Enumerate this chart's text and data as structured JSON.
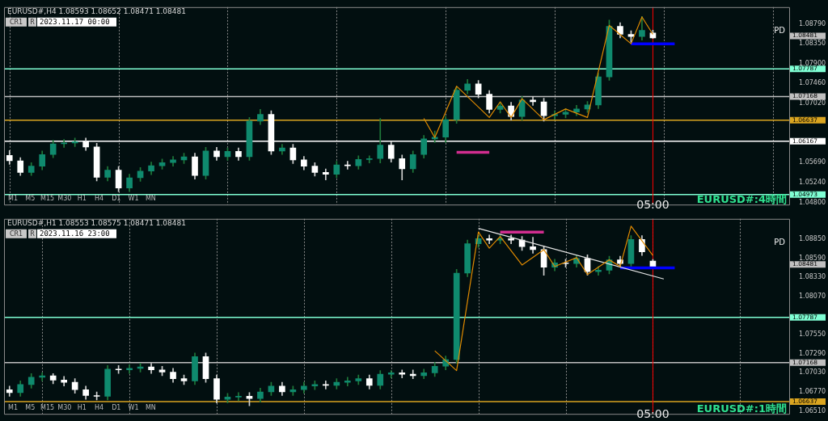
{
  "chart_data": [
    {
      "type": "candlestick",
      "title": "EURUSD#,H4 1.08593 1.08652 1.08471 1.08481",
      "grid": "x",
      "categories": [
        null,
        null,
        null,
        null,
        null,
        null,
        null,
        null,
        null,
        null,
        null,
        null,
        null,
        null,
        null,
        null,
        null,
        null,
        null,
        null,
        null,
        null,
        null,
        null,
        null,
        null,
        null,
        null,
        null,
        null,
        null,
        null,
        null,
        null,
        null,
        null,
        null,
        null,
        null,
        null,
        null,
        null,
        null,
        null,
        null,
        null,
        null,
        null,
        null,
        null,
        null,
        null,
        null,
        null,
        null,
        null,
        null,
        null,
        null,
        "05:00",
        null,
        null,
        null,
        null,
        null,
        null,
        null,
        null,
        null,
        null,
        null,
        null
      ],
      "ohlc": [
        [
          1.0585,
          1.0596,
          1.0565,
          1.0573
        ],
        [
          1.0573,
          1.058,
          1.054,
          1.0547
        ],
        [
          1.0547,
          1.0569,
          1.054,
          1.0561
        ],
        [
          1.0561,
          1.0595,
          1.0553,
          1.0587
        ],
        [
          1.0587,
          1.0619,
          1.058,
          1.0611
        ],
        [
          1.0611,
          1.0621,
          1.0603,
          1.0613
        ],
        [
          1.0613,
          1.0624,
          1.0605,
          1.0616
        ],
        [
          1.0616,
          1.0624,
          1.0596,
          1.0604
        ],
        [
          1.0604,
          1.0612,
          1.0528,
          1.0536
        ],
        [
          1.0536,
          1.056,
          1.0528,
          1.0552
        ],
        [
          1.0552,
          1.056,
          1.0504,
          1.0512
        ],
        [
          1.0512,
          1.0543,
          1.0504,
          1.0535
        ],
        [
          1.0535,
          1.0558,
          1.0527,
          1.055
        ],
        [
          1.055,
          1.057,
          1.0542,
          1.0562
        ],
        [
          1.0562,
          1.0577,
          1.0554,
          1.0569
        ],
        [
          1.0569,
          1.0583,
          1.0561,
          1.0575
        ],
        [
          1.0575,
          1.059,
          1.0567,
          1.0582
        ],
        [
          1.0582,
          1.059,
          1.0532,
          1.054
        ],
        [
          1.054,
          1.0603,
          1.0532,
          1.0595
        ],
        [
          1.0595,
          1.0603,
          1.0574,
          1.0582
        ],
        [
          1.0582,
          1.0602,
          1.0574,
          1.0594
        ],
        [
          1.0594,
          1.0602,
          1.0574,
          1.0582
        ],
        [
          1.0582,
          1.067,
          1.0574,
          1.0662
        ],
        [
          1.0662,
          1.0688,
          1.0654,
          1.0677
        ],
        [
          1.0677,
          1.0685,
          1.0587,
          1.0595
        ],
        [
          1.0595,
          1.061,
          1.0587,
          1.0602
        ],
        [
          1.0602,
          1.061,
          1.0567,
          1.0575
        ],
        [
          1.0575,
          1.0583,
          1.0553,
          1.0561
        ],
        [
          1.0561,
          1.0569,
          1.0539,
          1.0547
        ],
        [
          1.0547,
          1.0555,
          1.053,
          1.0543
        ],
        [
          1.0543,
          1.0572,
          1.0535,
          1.0564
        ],
        [
          1.0564,
          1.0572,
          1.0554,
          1.0562
        ],
        [
          1.0562,
          1.0584,
          1.0554,
          1.0576
        ],
        [
          1.0576,
          1.0584,
          1.0568,
          1.0578
        ],
        [
          1.0578,
          1.0668,
          1.0568,
          1.0608
        ],
        [
          1.0608,
          1.0616,
          1.057,
          1.0578
        ],
        [
          1.0578,
          1.0586,
          1.053,
          1.0555
        ],
        [
          1.0555,
          1.0595,
          1.0547,
          1.0587
        ],
        [
          1.0587,
          1.063,
          1.0579,
          1.0622
        ],
        [
          1.0622,
          1.064,
          1.0614,
          1.0626
        ],
        [
          1.0626,
          1.0673,
          1.0614,
          1.0665
        ],
        [
          1.0665,
          1.0739,
          1.0657,
          1.0731
        ],
        [
          1.0731,
          1.0755,
          1.0723,
          1.0745
        ],
        [
          1.0745,
          1.0753,
          1.0714,
          1.0722
        ],
        [
          1.0722,
          1.073,
          1.068,
          1.0688
        ],
        [
          1.0688,
          1.0704,
          1.068,
          1.0696
        ],
        [
          1.0696,
          1.0704,
          1.0664,
          1.0672
        ],
        [
          1.0672,
          1.0717,
          1.0664,
          1.0709
        ],
        [
          1.0709,
          1.0717,
          1.0697,
          1.0705
        ],
        [
          1.0705,
          1.0713,
          1.0662,
          1.0674
        ],
        [
          1.0674,
          1.0685,
          1.0666,
          1.0677
        ],
        [
          1.0677,
          1.069,
          1.0669,
          1.0682
        ],
        [
          1.0682,
          1.0697,
          1.0674,
          1.0689
        ],
        [
          1.0689,
          1.0706,
          1.0681,
          1.0698
        ],
        [
          1.0698,
          1.0769,
          1.069,
          1.0761
        ],
        [
          1.0761,
          1.0888,
          1.0753,
          1.0874
        ],
        [
          1.0874,
          1.0882,
          1.0848,
          1.0856
        ],
        [
          1.0856,
          1.0864,
          1.0838,
          1.0851
        ],
        [
          1.0851,
          1.0896,
          1.0843,
          1.0865
        ],
        [
          1.08593,
          1.08652,
          1.08471,
          1.08481
        ],
        null,
        null,
        null,
        null,
        null,
        null,
        null,
        null,
        null,
        null,
        null,
        null
      ],
      "series": [
        {
          "type": "line",
          "color": "#e08a00",
          "values": [
            null,
            null,
            null,
            null,
            null,
            null,
            null,
            null,
            null,
            null,
            null,
            null,
            null,
            null,
            null,
            null,
            null,
            null,
            null,
            null,
            null,
            null,
            null,
            null,
            null,
            null,
            null,
            null,
            null,
            null,
            null,
            null,
            null,
            null,
            null,
            null,
            null,
            null,
            1.0668,
            1.0625,
            null,
            1.074,
            null,
            null,
            1.067,
            1.0705,
            1.067,
            1.0712,
            null,
            1.0665,
            null,
            1.0689,
            null,
            1.067,
            null,
            1.0876,
            null,
            1.0835,
            1.0895,
            1.0856,
            null,
            null,
            null,
            null,
            null,
            null,
            null,
            null,
            null,
            null,
            null,
            null
          ]
        },
        {
          "type": "line",
          "color": "#0000ff",
          "values": [
            null,
            null,
            null,
            null,
            null,
            null,
            null,
            null,
            null,
            null,
            null,
            null,
            null,
            null,
            null,
            null,
            null,
            null,
            null,
            null,
            null,
            null,
            null,
            null,
            null,
            null,
            null,
            null,
            null,
            null,
            null,
            null,
            null,
            null,
            null,
            null,
            null,
            null,
            null,
            null,
            null,
            null,
            null,
            null,
            null,
            null,
            null,
            null,
            null,
            null,
            null,
            null,
            null,
            null,
            null,
            null,
            null,
            1.0835,
            null,
            null,
            null,
            1.0835,
            null,
            null,
            null,
            null,
            null,
            null,
            null,
            null,
            null,
            null
          ]
        },
        {
          "type": "line",
          "color": "#d12d8f",
          "values": [
            null,
            null,
            null,
            null,
            null,
            null,
            null,
            null,
            null,
            null,
            null,
            null,
            null,
            null,
            null,
            null,
            null,
            null,
            null,
            null,
            null,
            null,
            null,
            null,
            null,
            null,
            null,
            null,
            null,
            null,
            null,
            null,
            null,
            null,
            null,
            null,
            null,
            null,
            null,
            null,
            null,
            1.0592,
            null,
            null,
            1.0592,
            null,
            null,
            null,
            null,
            null,
            null,
            null,
            null,
            null,
            null,
            null,
            null,
            null,
            null,
            null,
            null,
            null,
            null,
            null,
            null,
            null,
            null,
            null,
            null,
            null,
            null,
            null
          ]
        }
      ],
      "ylim": [
        1.0475,
        1.0917
      ],
      "yticks": [
        {
          "value": 1.048,
          "label": "1.04800"
        },
        {
          "value": 1.0524,
          "label": "1.05240"
        },
        {
          "value": 1.0569,
          "label": "1.05690"
        },
        {
          "value": 1.0702,
          "label": "1.07020"
        },
        {
          "value": 1.0746,
          "label": "1.07460"
        },
        {
          "value": 1.079,
          "label": "1.07900"
        },
        {
          "value": 1.0835,
          "label": "1.08350"
        },
        {
          "value": 1.0879,
          "label": "1.08790"
        }
      ],
      "ref_lines": [
        {
          "axis": "y",
          "value": 1.07787,
          "label": "1.07787",
          "color": "#7fffd4"
        },
        {
          "axis": "y",
          "value": 1.07168,
          "label": "1.07168",
          "color": "#c0c0c0"
        },
        {
          "axis": "y",
          "value": 1.06637,
          "label": "1.06637",
          "color": "#daa520"
        },
        {
          "axis": "y",
          "value": 1.06167,
          "label": "1.06167",
          "color": "#ffffff"
        },
        {
          "axis": "y",
          "value": 1.04973,
          "label": "1.04973",
          "color": "#7fffd4"
        },
        {
          "axis": "x",
          "value": "05:00",
          "color": "#ff0000"
        }
      ],
      "annotations": [
        "CR1",
        "R",
        "2023.11.17 00:00",
        "M1",
        "M5",
        "M15",
        "M30",
        "H1",
        "H4",
        "D1",
        "W1",
        "MN",
        "PD",
        "EURUSD#:4時間",
        "1.08481"
      ]
    },
    {
      "type": "candlestick",
      "title": "EURUSD#,H1 1.08553 1.08575 1.08471 1.08481",
      "grid": "x",
      "categories": [
        null,
        null,
        null,
        null,
        null,
        null,
        null,
        null,
        null,
        null,
        null,
        null,
        null,
        null,
        null,
        null,
        null,
        null,
        null,
        null,
        null,
        null,
        null,
        null,
        null,
        null,
        null,
        null,
        null,
        null,
        null,
        null,
        null,
        null,
        null,
        null,
        null,
        null,
        null,
        null,
        null,
        null,
        null,
        null,
        null,
        null,
        null,
        null,
        null,
        null,
        null,
        null,
        null,
        null,
        null,
        null,
        null,
        null,
        null,
        "05:00",
        null,
        null,
        null,
        null,
        null,
        null,
        null,
        null,
        null,
        null,
        null,
        null
      ],
      "ohlc": [
        [
          1.068,
          1.0685,
          1.0671,
          1.0676
        ],
        [
          1.0676,
          1.0692,
          1.0671,
          1.0687
        ],
        [
          1.0687,
          1.0702,
          1.0682,
          1.0697
        ],
        [
          1.0697,
          1.0703,
          1.0692,
          1.0699
        ],
        [
          1.0699,
          1.0702,
          1.0688,
          1.0693
        ],
        [
          1.0693,
          1.0698,
          1.0685,
          1.069
        ],
        [
          1.069,
          1.0695,
          1.0675,
          1.068
        ],
        [
          1.068,
          1.0685,
          1.0667,
          1.0672
        ],
        [
          1.0672,
          1.0677,
          1.0666,
          1.0671
        ],
        [
          1.0671,
          1.0713,
          1.0666,
          1.0708
        ],
        [
          1.0708,
          1.0713,
          1.0702,
          1.0707
        ],
        [
          1.0707,
          1.0714,
          1.0702,
          1.0709
        ],
        [
          1.0709,
          1.0716,
          1.0704,
          1.0711
        ],
        [
          1.0711,
          1.0716,
          1.0702,
          1.0707
        ],
        [
          1.0707,
          1.0712,
          1.0699,
          1.0704
        ],
        [
          1.0704,
          1.0709,
          1.069,
          1.0695
        ],
        [
          1.0695,
          1.07,
          1.0687,
          1.0692
        ],
        [
          1.0692,
          1.073,
          1.0687,
          1.0725
        ],
        [
          1.0725,
          1.073,
          1.069,
          1.0695
        ],
        [
          1.0695,
          1.07,
          1.0662,
          1.0667
        ],
        [
          1.0667,
          1.0675,
          1.0662,
          1.067
        ],
        [
          1.067,
          1.0676,
          1.0665,
          1.0671
        ],
        [
          1.0671,
          1.0676,
          1.0658,
          1.0668
        ],
        [
          1.0668,
          1.0682,
          1.0663,
          1.0677
        ],
        [
          1.0677,
          1.069,
          1.0672,
          1.0685
        ],
        [
          1.0685,
          1.069,
          1.0672,
          1.0677
        ],
        [
          1.0677,
          1.0685,
          1.0672,
          1.068
        ],
        [
          1.068,
          1.069,
          1.0675,
          1.0685
        ],
        [
          1.0685,
          1.0692,
          1.068,
          1.0687
        ],
        [
          1.0687,
          1.0692,
          1.0681,
          1.0686
        ],
        [
          1.0686,
          1.0695,
          1.0681,
          1.069
        ],
        [
          1.069,
          1.0697,
          1.0685,
          1.0692
        ],
        [
          1.0692,
          1.07,
          1.0687,
          1.0695
        ],
        [
          1.0695,
          1.07,
          1.0681,
          1.0686
        ],
        [
          1.0686,
          1.0706,
          1.0681,
          1.0701
        ],
        [
          1.0701,
          1.0706,
          1.0696,
          1.0703
        ],
        [
          1.0703,
          1.0707,
          1.0696,
          1.0701
        ],
        [
          1.0701,
          1.0707,
          1.0695,
          1.0699
        ],
        [
          1.0699,
          1.0708,
          1.0695,
          1.0703
        ],
        [
          1.0703,
          1.0717,
          1.0698,
          1.0712
        ],
        [
          1.0712,
          1.0726,
          1.0707,
          1.0721
        ],
        [
          1.0721,
          1.0844,
          1.0716,
          1.0839
        ],
        [
          1.0839,
          1.0884,
          1.0834,
          1.0879
        ],
        [
          1.0879,
          1.0891,
          1.0874,
          1.0886
        ],
        [
          1.0886,
          1.0891,
          1.0879,
          1.0884
        ],
        [
          1.0884,
          1.0891,
          1.0879,
          1.0886
        ],
        [
          1.0886,
          1.0891,
          1.0879,
          1.0884
        ],
        [
          1.0884,
          1.0889,
          1.087,
          1.0875
        ],
        [
          1.0875,
          1.0888,
          1.0866,
          1.0871
        ],
        [
          1.0871,
          1.0876,
          1.0836,
          1.0847
        ],
        [
          1.0847,
          1.0858,
          1.0842,
          1.0853
        ],
        [
          1.0853,
          1.0858,
          1.0847,
          1.0852
        ],
        [
          1.0852,
          1.0864,
          1.0847,
          1.0859
        ],
        [
          1.0859,
          1.0864,
          1.0836,
          1.0841
        ],
        [
          1.0841,
          1.0848,
          1.0836,
          1.0843
        ],
        [
          1.0843,
          1.0862,
          1.0838,
          1.0857
        ],
        [
          1.0857,
          1.0862,
          1.0847,
          1.0852
        ],
        [
          1.0852,
          1.089,
          1.0847,
          1.0885
        ],
        [
          1.0885,
          1.089,
          1.0863,
          1.0868
        ],
        [
          1.08553,
          1.08575,
          1.08471,
          1.08481
        ],
        null,
        null,
        null,
        null,
        null,
        null,
        null,
        null,
        null,
        null,
        null,
        null
      ],
      "series": [
        {
          "type": "line",
          "color": "#e08a00",
          "values": [
            null,
            null,
            null,
            null,
            null,
            null,
            null,
            null,
            null,
            null,
            null,
            null,
            null,
            null,
            null,
            null,
            null,
            null,
            null,
            null,
            null,
            null,
            null,
            null,
            null,
            null,
            null,
            null,
            null,
            null,
            null,
            null,
            null,
            null,
            null,
            null,
            null,
            null,
            null,
            1.0733,
            null,
            1.0706,
            null,
            1.0895,
            1.0873,
            1.0889,
            null,
            1.085,
            null,
            1.0871,
            1.0848,
            null,
            1.086,
            1.0837,
            null,
            1.0857,
            1.0848,
            1.0903,
            null,
            1.0863,
            null,
            null,
            null,
            null,
            null,
            null,
            null,
            null,
            null,
            null,
            null,
            null
          ]
        },
        {
          "type": "line",
          "color": "#e6e6e6",
          "values": [
            null,
            null,
            null,
            null,
            null,
            null,
            null,
            null,
            null,
            null,
            null,
            null,
            null,
            null,
            null,
            null,
            null,
            null,
            null,
            null,
            null,
            null,
            null,
            null,
            null,
            null,
            null,
            null,
            null,
            null,
            null,
            null,
            null,
            null,
            null,
            null,
            null,
            null,
            null,
            null,
            null,
            null,
            null,
            1.09,
            null,
            null,
            null,
            null,
            null,
            null,
            null,
            null,
            null,
            null,
            null,
            null,
            null,
            null,
            null,
            null,
            1.0831,
            null,
            null,
            null,
            null,
            null,
            null,
            null,
            null,
            null,
            null,
            null
          ]
        },
        {
          "type": "line",
          "color": "#d12d8f",
          "values": [
            null,
            null,
            null,
            null,
            null,
            null,
            null,
            null,
            null,
            null,
            null,
            null,
            null,
            null,
            null,
            null,
            null,
            null,
            null,
            null,
            null,
            null,
            null,
            null,
            null,
            null,
            null,
            null,
            null,
            null,
            null,
            null,
            null,
            null,
            null,
            null,
            null,
            null,
            null,
            null,
            null,
            null,
            null,
            null,
            null,
            1.0895,
            null,
            null,
            null,
            1.0895,
            null,
            null,
            null,
            null,
            null,
            null,
            null,
            null,
            null,
            null,
            null,
            null,
            null,
            null,
            null,
            null,
            null,
            null,
            null,
            null,
            null,
            null
          ]
        },
        {
          "type": "line",
          "color": "#0000ff",
          "values": [
            null,
            null,
            null,
            null,
            null,
            null,
            null,
            null,
            null,
            null,
            null,
            null,
            null,
            null,
            null,
            null,
            null,
            null,
            null,
            null,
            null,
            null,
            null,
            null,
            null,
            null,
            null,
            null,
            null,
            null,
            null,
            null,
            null,
            null,
            null,
            null,
            null,
            null,
            null,
            null,
            null,
            null,
            null,
            null,
            null,
            null,
            null,
            null,
            null,
            null,
            null,
            null,
            null,
            null,
            null,
            null,
            1.0846,
            null,
            null,
            null,
            null,
            1.0846,
            null,
            null,
            null,
            null,
            null,
            null,
            null,
            null,
            null,
            null
          ]
        }
      ],
      "ylim": [
        1.0647,
        1.0913
      ],
      "yticks": [
        {
          "value": 1.0651,
          "label": "1.06510"
        },
        {
          "value": 1.0677,
          "label": "1.06770"
        },
        {
          "value": 1.0703,
          "label": "1.07030"
        },
        {
          "value": 1.0729,
          "label": "1.07290"
        },
        {
          "value": 1.0755,
          "label": "1.07550"
        },
        {
          "value": 1.0807,
          "label": "1.08070"
        },
        {
          "value": 1.0833,
          "label": "1.08330"
        },
        {
          "value": 1.0859,
          "label": "1.08590"
        },
        {
          "value": 1.0885,
          "label": "1.08850"
        }
      ],
      "ref_lines": [
        {
          "axis": "y",
          "value": 1.07787,
          "label": "1.07787",
          "color": "#7fffd4"
        },
        {
          "axis": "y",
          "value": 1.07168,
          "label": "1.07168",
          "color": "#c0c0c0"
        },
        {
          "axis": "y",
          "value": 1.06637,
          "label": "1.06637",
          "color": "#daa520"
        },
        {
          "axis": "x",
          "value": "05:00",
          "color": "#ff0000"
        }
      ],
      "annotations": [
        "CR1",
        "R",
        "2023.11.16 23:00",
        "M1",
        "M5",
        "M15",
        "M30",
        "H1",
        "H4",
        "D1",
        "W1",
        "MN",
        "PD",
        "EURUSD#:1時間",
        "1.08481"
      ]
    }
  ]
}
